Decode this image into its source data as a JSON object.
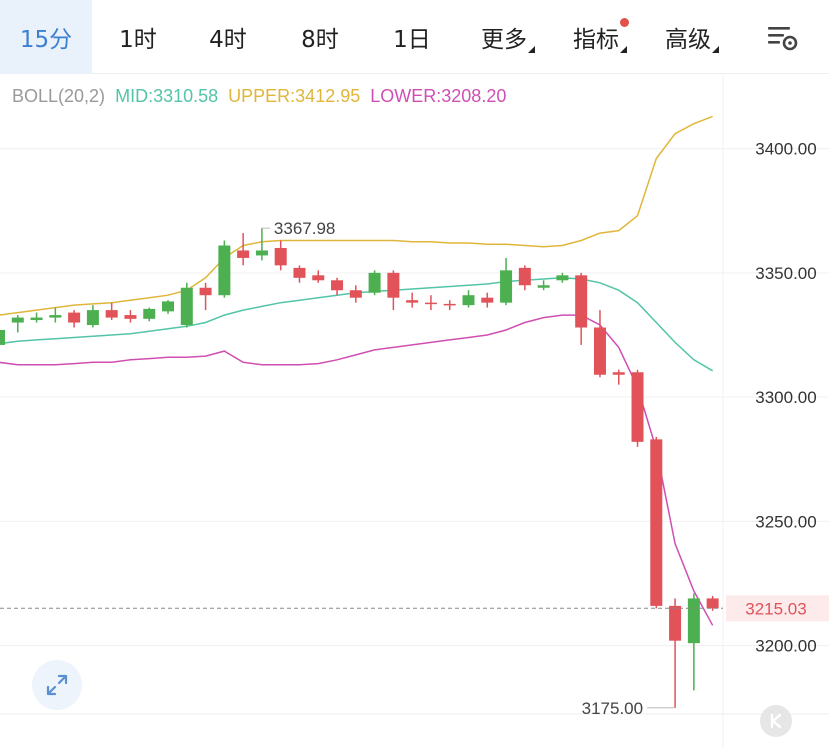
{
  "toolbar": {
    "tabs": [
      {
        "label": "15分",
        "active": true
      },
      {
        "label": "1时"
      },
      {
        "label": "4时"
      },
      {
        "label": "8时"
      },
      {
        "label": "1日"
      },
      {
        "label": "更多",
        "dropdown": true
      },
      {
        "label": "指标",
        "dropdown": true,
        "dot": true
      },
      {
        "label": "高级",
        "dropdown": true
      }
    ],
    "settings_icon": "chart-settings-icon"
  },
  "legend": {
    "name": "BOLL(20,2)",
    "mid_label": "MID:3310.58",
    "upper_label": "UPPER:3412.95",
    "lower_label": "LOWER:3208.20"
  },
  "colors": {
    "up": "#4caf50",
    "down": "#e15259",
    "mid": "#52c4a8",
    "upper": "#e0b63a",
    "lower": "#cf4fb3",
    "legend_name": "#999999",
    "current_price_bg": "#fdeaea",
    "current_price_text": "#e15259",
    "active_tab": "#3d7fd0"
  },
  "chart_data": {
    "type": "candlestick",
    "title": "",
    "indicator": "BOLL(20,2)",
    "ylim": [
      3172.5,
      3430
    ],
    "y_ticks": [
      3400.0,
      3350.0,
      3300.0,
      3250.0,
      3200.0
    ],
    "y_tick_labels": [
      "3400.00",
      "3350.00",
      "3300.00",
      "3250.00",
      "3200.00"
    ],
    "current_price": 3215.03,
    "current_price_label": "3215.03",
    "annotations": [
      {
        "label": "3367.98",
        "value": 3367.98,
        "index": 14
      },
      {
        "label": "3175.00",
        "value": 3175.0,
        "index": 36
      }
    ],
    "candles": [
      {
        "o": 3321.0,
        "h": 3328.5,
        "l": 3319.0,
        "c": 3327.0
      },
      {
        "o": 3330.0,
        "h": 3333.0,
        "l": 3326.0,
        "c": 3332.0
      },
      {
        "o": 3331.0,
        "h": 3334.0,
        "l": 3330.0,
        "c": 3332.0
      },
      {
        "o": 3332.0,
        "h": 3336.0,
        "l": 3330.0,
        "c": 3333.0
      },
      {
        "o": 3334.0,
        "h": 3335.0,
        "l": 3328.0,
        "c": 3330.0
      },
      {
        "o": 3329.0,
        "h": 3337.0,
        "l": 3328.0,
        "c": 3335.0
      },
      {
        "o": 3335.0,
        "h": 3338.0,
        "l": 3331.0,
        "c": 3332.0
      },
      {
        "o": 3333.0,
        "h": 3335.0,
        "l": 3330.0,
        "c": 3331.5
      },
      {
        "o": 3331.5,
        "h": 3336.0,
        "l": 3330.5,
        "c": 3335.5
      },
      {
        "o": 3334.5,
        "h": 3339.0,
        "l": 3333.5,
        "c": 3338.5
      },
      {
        "o": 3329.0,
        "h": 3346.0,
        "l": 3328.0,
        "c": 3344.0
      },
      {
        "o": 3344.0,
        "h": 3346.0,
        "l": 3335.0,
        "c": 3341.0
      },
      {
        "o": 3341.0,
        "h": 3363.0,
        "l": 3340.0,
        "c": 3361.0
      },
      {
        "o": 3359.0,
        "h": 3366.0,
        "l": 3353.0,
        "c": 3356.0
      },
      {
        "o": 3357.0,
        "h": 3367.98,
        "l": 3355.0,
        "c": 3359.0
      },
      {
        "o": 3360.0,
        "h": 3363.0,
        "l": 3351.0,
        "c": 3353.0
      },
      {
        "o": 3352.0,
        "h": 3353.0,
        "l": 3346.0,
        "c": 3348.0
      },
      {
        "o": 3349.0,
        "h": 3351.0,
        "l": 3346.0,
        "c": 3347.0
      },
      {
        "o": 3347.0,
        "h": 3348.0,
        "l": 3341.0,
        "c": 3343.0
      },
      {
        "o": 3343.0,
        "h": 3345.0,
        "l": 3338.0,
        "c": 3340.0
      },
      {
        "o": 3342.0,
        "h": 3351.0,
        "l": 3341.0,
        "c": 3350.0
      },
      {
        "o": 3350.0,
        "h": 3351.0,
        "l": 3335.0,
        "c": 3340.0
      },
      {
        "o": 3339.0,
        "h": 3342.0,
        "l": 3336.0,
        "c": 3338.0
      },
      {
        "o": 3338.0,
        "h": 3341.0,
        "l": 3335.0,
        "c": 3337.5
      },
      {
        "o": 3337.5,
        "h": 3339.0,
        "l": 3335.0,
        "c": 3337.0
      },
      {
        "o": 3337.0,
        "h": 3343.0,
        "l": 3336.0,
        "c": 3341.0
      },
      {
        "o": 3340.0,
        "h": 3342.0,
        "l": 3336.0,
        "c": 3338.0
      },
      {
        "o": 3338.0,
        "h": 3356.0,
        "l": 3337.0,
        "c": 3351.0
      },
      {
        "o": 3352.0,
        "h": 3353.0,
        "l": 3343.0,
        "c": 3345.0
      },
      {
        "o": 3344.0,
        "h": 3347.0,
        "l": 3343.0,
        "c": 3345.0
      },
      {
        "o": 3347.0,
        "h": 3350.0,
        "l": 3346.0,
        "c": 3349.0
      },
      {
        "o": 3349.0,
        "h": 3350.0,
        "l": 3321.0,
        "c": 3328.0
      },
      {
        "o": 3328.0,
        "h": 3335.0,
        "l": 3308.0,
        "c": 3309.0
      },
      {
        "o": 3310.0,
        "h": 3311.0,
        "l": 3305.0,
        "c": 3309.0
      },
      {
        "o": 3310.0,
        "h": 3311.0,
        "l": 3280.0,
        "c": 3282.0
      },
      {
        "o": 3283.0,
        "h": 3284.0,
        "l": 3215.0,
        "c": 3216.0
      },
      {
        "o": 3216.0,
        "h": 3219.0,
        "l": 3175.0,
        "c": 3202.0
      },
      {
        "o": 3201.0,
        "h": 3221.0,
        "l": 3182.0,
        "c": 3219.0
      },
      {
        "o": 3219.0,
        "h": 3220.0,
        "l": 3214.0,
        "c": 3215.03
      }
    ],
    "series": [
      {
        "name": "MID",
        "values": [
          3321.5,
          3322.5,
          3323.0,
          3323.5,
          3324.0,
          3324.5,
          3325.0,
          3325.5,
          3326.5,
          3327.5,
          3328.5,
          3330.0,
          3333.0,
          3335.0,
          3336.5,
          3338.0,
          3339.0,
          3340.0,
          3341.0,
          3342.0,
          3342.5,
          3343.0,
          3343.5,
          3344.0,
          3344.5,
          3345.0,
          3345.5,
          3346.5,
          3347.0,
          3347.5,
          3348.0,
          3347.5,
          3346.0,
          3343.0,
          3338.0,
          3330.0,
          3322.0,
          3315.0,
          3310.58
        ]
      },
      {
        "name": "UPPER",
        "values": [
          3333.0,
          3334.0,
          3335.0,
          3336.0,
          3337.0,
          3337.5,
          3338.0,
          3339.0,
          3340.0,
          3341.0,
          3343.0,
          3348.0,
          3356.0,
          3361.0,
          3362.5,
          3363.0,
          3363.0,
          3363.0,
          3363.0,
          3363.0,
          3363.0,
          3363.0,
          3362.5,
          3362.5,
          3362.0,
          3362.0,
          3361.5,
          3361.5,
          3361.0,
          3360.5,
          3361.0,
          3363.0,
          3366.0,
          3367.0,
          3373.0,
          3396.0,
          3406.0,
          3410.0,
          3412.95
        ]
      },
      {
        "name": "LOWER",
        "values": [
          3314.0,
          3313.0,
          3313.0,
          3313.0,
          3313.5,
          3314.0,
          3314.0,
          3315.0,
          3315.5,
          3316.0,
          3316.0,
          3316.5,
          3318.5,
          3314.0,
          3313.0,
          3313.0,
          3313.0,
          3313.5,
          3315.0,
          3317.0,
          3319.0,
          3320.0,
          3321.0,
          3322.0,
          3323.0,
          3324.0,
          3325.0,
          3327.0,
          3330.0,
          3332.0,
          3333.0,
          3333.0,
          3329.0,
          3320.0,
          3304.0,
          3279.0,
          3241.0,
          3222.0,
          3208.2
        ]
      }
    ]
  }
}
